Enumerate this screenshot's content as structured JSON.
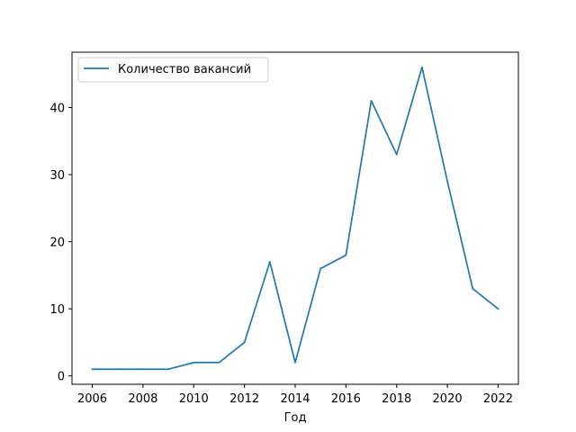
{
  "chart_data": {
    "type": "line",
    "title": "",
    "xlabel": "Год",
    "ylabel": "",
    "xlim": [
      2005.2,
      2022.8
    ],
    "ylim": [
      -1.25,
      48.25
    ],
    "xticks": [
      2006,
      2008,
      2010,
      2012,
      2014,
      2016,
      2018,
      2020,
      2022
    ],
    "yticks": [
      0,
      10,
      20,
      30,
      40
    ],
    "grid": false,
    "legend_position": "top-left",
    "series": [
      {
        "name": "Количество вакансий",
        "color": "#1f77b4",
        "x": [
          2006,
          2007,
          2008,
          2009,
          2010,
          2011,
          2012,
          2013,
          2014,
          2015,
          2016,
          2017,
          2018,
          2019,
          2020,
          2021,
          2022
        ],
        "y": [
          1,
          1,
          1,
          1,
          2,
          2,
          5,
          17,
          2,
          16,
          18,
          41,
          33,
          46,
          29,
          13,
          10
        ]
      }
    ]
  }
}
